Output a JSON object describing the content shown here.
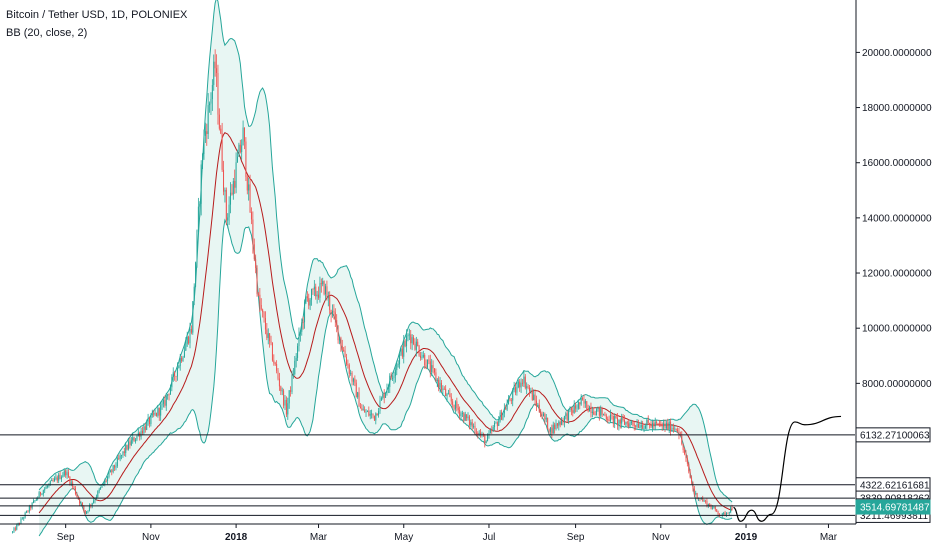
{
  "header": {
    "symbol": "Bitcoin / Tether USD, 1D, POLONIEX",
    "indicator": "BB (20, close, 2)"
  },
  "colors": {
    "up": "#26a69a",
    "down": "#ef5350",
    "band": "#26a69a",
    "band_fill": "#e8f6f3",
    "basis": "#b71c1c",
    "level_line": "#131722",
    "projection": "#000000",
    "current_tag": "#26a69a"
  },
  "chart_data": {
    "type": "candlestick",
    "x_tick_labels": [
      "Sep",
      "Nov",
      "2018",
      "Mar",
      "May",
      "Jul",
      "Sep",
      "Nov",
      "2019",
      "Mar"
    ],
    "x_tick_months": [
      "2017-09",
      "2017-11",
      "2018-01",
      "2018-03",
      "2018-05",
      "2018-07",
      "2018-09",
      "2018-11",
      "2019-01",
      "2019-03"
    ],
    "ylim": [
      2900,
      21900
    ],
    "y_tick_labels": [
      "20000.00000000",
      "18000.00000000",
      "16000.00000000",
      "14000.00000000",
      "12000.00000000",
      "10000.00000000",
      "8000.00000000"
    ],
    "y_tick_values": [
      20000,
      18000,
      16000,
      14000,
      12000,
      10000,
      8000
    ],
    "price_anchors": [
      {
        "date": "2017-07-25",
        "close": 2600
      },
      {
        "date": "2017-08-15",
        "close": 4100
      },
      {
        "date": "2017-09-01",
        "close": 4800
      },
      {
        "date": "2017-09-15",
        "close": 3300
      },
      {
        "date": "2017-10-15",
        "close": 5700
      },
      {
        "date": "2017-11-10",
        "close": 7200
      },
      {
        "date": "2017-11-30",
        "close": 10000
      },
      {
        "date": "2017-12-08",
        "close": 16500
      },
      {
        "date": "2017-12-17",
        "close": 19500
      },
      {
        "date": "2017-12-25",
        "close": 14000
      },
      {
        "date": "2018-01-06",
        "close": 17000
      },
      {
        "date": "2018-01-17",
        "close": 11000
      },
      {
        "date": "2018-02-06",
        "close": 7000
      },
      {
        "date": "2018-02-20",
        "close": 11000
      },
      {
        "date": "2018-03-05",
        "close": 11500
      },
      {
        "date": "2018-04-01",
        "close": 7000
      },
      {
        "date": "2018-04-10",
        "close": 6800
      },
      {
        "date": "2018-05-05",
        "close": 9800
      },
      {
        "date": "2018-06-01",
        "close": 7500
      },
      {
        "date": "2018-06-29",
        "close": 5900
      },
      {
        "date": "2018-07-25",
        "close": 8200
      },
      {
        "date": "2018-08-14",
        "close": 6300
      },
      {
        "date": "2018-09-05",
        "close": 7300
      },
      {
        "date": "2018-10-01",
        "close": 6600
      },
      {
        "date": "2018-11-13",
        "close": 6400
      },
      {
        "date": "2018-11-25",
        "close": 4000
      },
      {
        "date": "2018-12-15",
        "close": 3200
      },
      {
        "date": "2018-12-22",
        "close": 3500
      }
    ],
    "projection": [
      {
        "date": "2018-12-23",
        "value": 3500
      },
      {
        "date": "2018-12-28",
        "value": 3000
      },
      {
        "date": "2019-01-05",
        "value": 3400
      },
      {
        "date": "2019-01-12",
        "value": 3000
      },
      {
        "date": "2019-01-19",
        "value": 3250
      },
      {
        "date": "2019-02-05",
        "value": 6600
      },
      {
        "date": "2019-02-12",
        "value": 6500
      },
      {
        "date": "2019-03-10",
        "value": 6800
      }
    ],
    "horizontal_levels": [
      {
        "value": 6132.271,
        "label": "6132.27100063"
      },
      {
        "value": 4322.6216,
        "label": "4322.62161681"
      },
      {
        "value": 3839.9082,
        "label": "3839.90818262"
      },
      {
        "value": 3557.5664,
        "label": "3557.56636262"
      },
      {
        "value": 3211.4699,
        "label": "3211.46993811"
      }
    ],
    "current_price": {
      "value": 3514.6978,
      "label": "3514.69781487"
    }
  }
}
